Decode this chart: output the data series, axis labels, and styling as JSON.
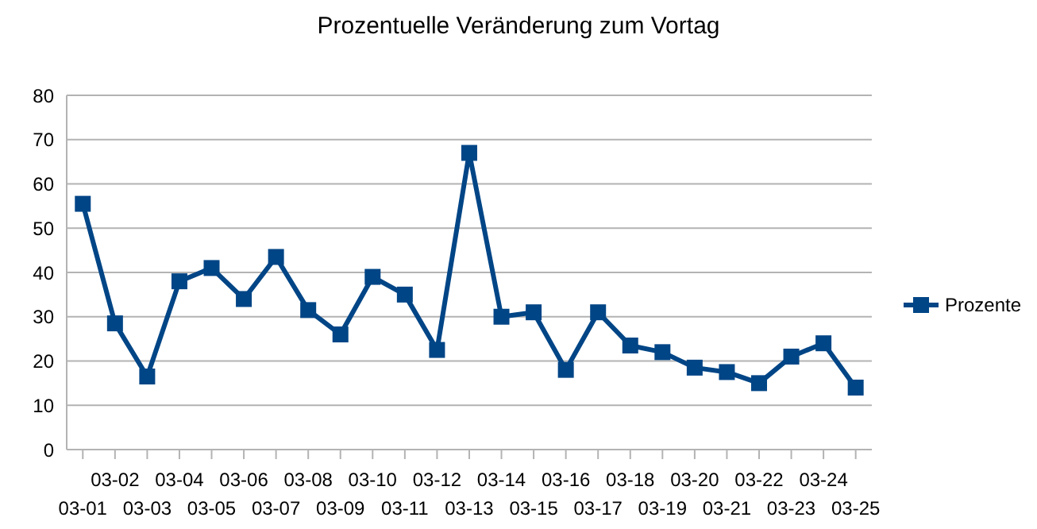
{
  "chart_data": {
    "type": "line",
    "title": "Prozentuelle Veränderung zum Vortag",
    "categories": [
      "03-01",
      "03-02",
      "03-03",
      "03-04",
      "03-05",
      "03-06",
      "03-07",
      "03-08",
      "03-09",
      "03-10",
      "03-11",
      "03-12",
      "03-13",
      "03-14",
      "03-15",
      "03-16",
      "03-17",
      "03-18",
      "03-19",
      "03-20",
      "03-21",
      "03-22",
      "03-23",
      "03-24",
      "03-25"
    ],
    "series": [
      {
        "name": "Prozente",
        "color": "#004586",
        "values": [
          55.5,
          28.5,
          16.5,
          38,
          41,
          34,
          43.5,
          31.5,
          26,
          39,
          35,
          22.5,
          67,
          30,
          31,
          18,
          31,
          23.5,
          22,
          18.5,
          17.5,
          15,
          21,
          24,
          14
        ]
      }
    ],
    "ylim": [
      0,
      80
    ],
    "yticks": [
      0,
      10,
      20,
      30,
      40,
      50,
      60,
      70,
      80
    ],
    "grid": "y",
    "legend": "right",
    "marker": "square",
    "line_style": "solid"
  }
}
